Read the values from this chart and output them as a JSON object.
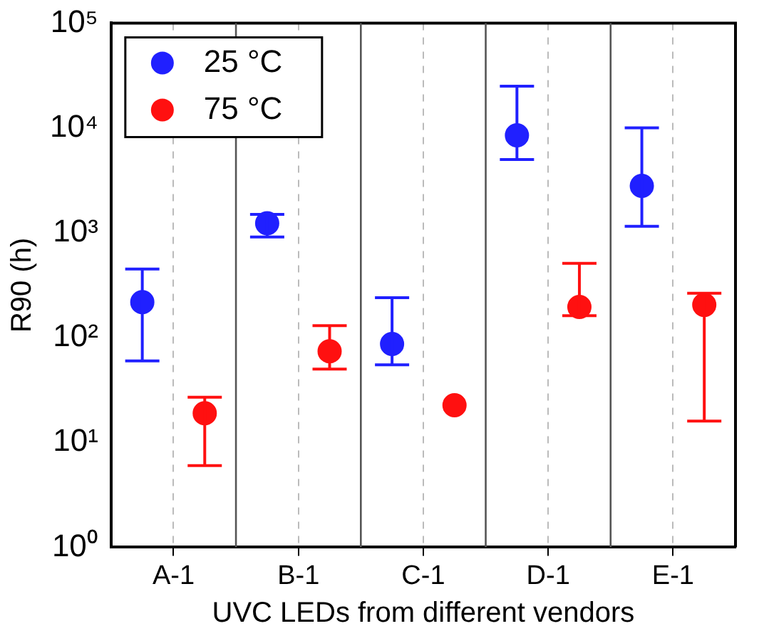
{
  "chart_data": {
    "type": "scatter",
    "xlabel": "UVC LEDs from different vendors",
    "ylabel": "R90 (h)",
    "categories": [
      "A-1",
      "B-1",
      "C-1",
      "D-1",
      "E-1"
    ],
    "series": [
      {
        "name": "25 °C",
        "color": "#2020ff",
        "values": [
          218,
          1230,
          87,
          8500,
          2800
        ],
        "errors": [
          [
            60,
            450
          ],
          [
            910,
            1500
          ],
          [
            55,
            240
          ],
          [
            5000,
            25000
          ],
          [
            1150,
            10000
          ]
        ]
      },
      {
        "name": "75 °C",
        "color": "#ff1010",
        "values": [
          19,
          74,
          22.6,
          196,
          205
        ],
        "errors": [
          [
            6,
            27
          ],
          [
            50,
            130
          ],
          null,
          [
            162,
            510
          ],
          [
            16,
            265
          ]
        ]
      }
    ],
    "log": "y",
    "ylim": [
      1,
      100000
    ],
    "yticks": [
      {
        "value": 1,
        "label": "10⁰"
      },
      {
        "value": 10,
        "label": "10¹"
      },
      {
        "value": 100,
        "label": "10²"
      },
      {
        "value": 1000,
        "label": "10³"
      },
      {
        "value": 10000,
        "label": "10⁴"
      },
      {
        "value": 100000,
        "label": "10⁵"
      }
    ],
    "grid": "x",
    "legend": "top left",
    "marker": "circle"
  }
}
